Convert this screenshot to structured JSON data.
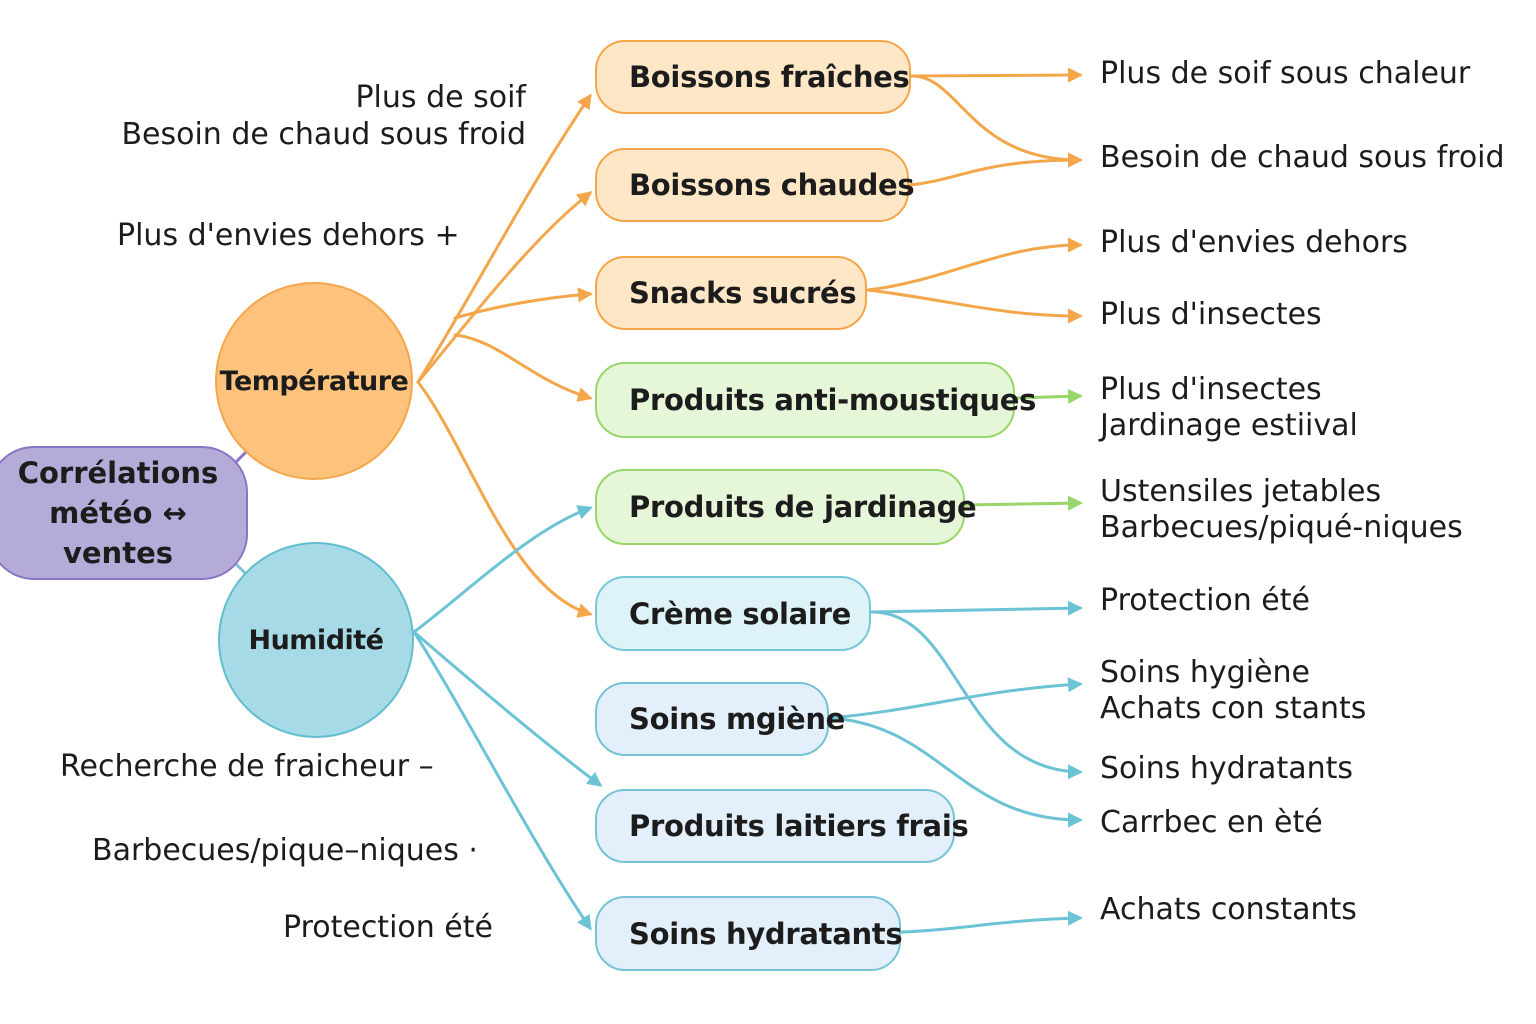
{
  "root": {
    "line1": "Corrélations",
    "line2": "météo ↔ ventes"
  },
  "hubs": {
    "temperature": "Température",
    "humidity": "Humidité"
  },
  "products": {
    "cold_drinks": "Boissons fraîches",
    "hot_drinks": "Boissons chaudes",
    "sweet_snacks": "Snacks sucrés",
    "anti_mosquito": "Produits anti-moustiques",
    "gardening": "Produits de jardinage",
    "sunscreen": "Crème solaire",
    "hygiene": "Soins mgiène",
    "dairy": "Produits laitiers frais",
    "moisturizers": "Soins hydratants"
  },
  "effects": {
    "thirst_heat": "Plus de soif sous chaleur",
    "warm_cold": "Besoin de chaud sous froid",
    "outdoor": "Plus d'envies dehors",
    "insects": "Plus d'insectes",
    "insects2_l1": "Plus d'insectes",
    "insects2_l2": "Jardinage estiival",
    "utensils_l1": "Ustensiles jetables",
    "utensils_l2": "Barbecues/piqué-niques",
    "summer_protection": "Protection été",
    "hygiene_l1": "Soins hygiène",
    "hygiene_l2": "Achats con stants",
    "moisturizing": "Soins hydratants",
    "carrbec": "Carrbec en èté",
    "constant": "Achats constants"
  },
  "side_notes": {
    "thirst": "Plus de soif",
    "warm_cold": "Besoin de chaud sous froid",
    "outdoor": "Plus d'envies dehors  +",
    "freshness": "Recherche de fraicheur  –",
    "bbq": "Barbecues/pique–niques  ·",
    "protection": "Protection été"
  },
  "colors": {
    "temperature": "#f4a64a",
    "garden": "#98d56a",
    "humidity": "#6cc3d5",
    "root": "#8a75c4"
  }
}
